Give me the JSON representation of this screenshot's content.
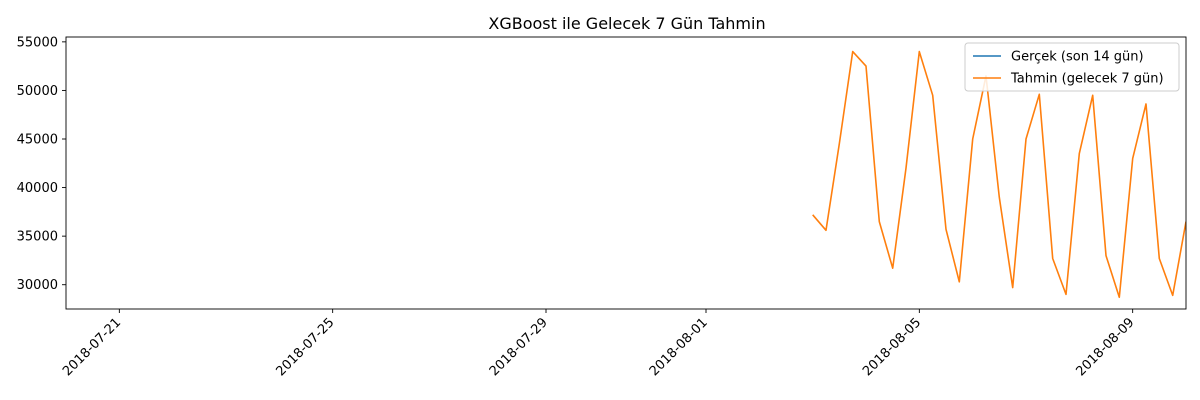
{
  "chart_data": {
    "type": "line",
    "title": "XGBoost ile Gelecek 7 Gün Tahmin",
    "xlabel": "",
    "ylabel": "",
    "xlim": [
      "2018-07-20",
      "2018-08-10"
    ],
    "ylim": [
      27500,
      55500
    ],
    "x_ticks": [
      "2018-07-21",
      "2018-07-25",
      "2018-07-29",
      "2018-08-01",
      "2018-08-05",
      "2018-08-09"
    ],
    "y_ticks": [
      30000,
      35000,
      40000,
      45000,
      50000,
      55000
    ],
    "y_tick_labels": [
      "30000",
      "35000",
      "40000",
      "45000",
      "50000",
      "55000"
    ],
    "grid": false,
    "legend": "top-right",
    "series": [
      {
        "name": "Gerçek (son 14 gün)",
        "color": "#1f77b4",
        "x": [],
        "values": []
      },
      {
        "name": "Tahmin (gelecek 7 gün)",
        "color": "#ff7f0e",
        "x": [
          "2018-08-03 00:00",
          "2018-08-03 06:00",
          "2018-08-03 12:00",
          "2018-08-03 18:00",
          "2018-08-04 00:00",
          "2018-08-04 06:00",
          "2018-08-04 12:00",
          "2018-08-04 18:00",
          "2018-08-05 00:00",
          "2018-08-05 06:00",
          "2018-08-05 12:00",
          "2018-08-05 18:00",
          "2018-08-06 00:00",
          "2018-08-06 06:00",
          "2018-08-06 12:00",
          "2018-08-06 18:00",
          "2018-08-07 00:00",
          "2018-08-07 06:00",
          "2018-08-07 12:00",
          "2018-08-07 18:00",
          "2018-08-08 00:00",
          "2018-08-08 06:00",
          "2018-08-08 12:00",
          "2018-08-08 18:00",
          "2018-08-09 00:00",
          "2018-08-09 06:00",
          "2018-08-09 12:00",
          "2018-08-09 18:00",
          "2018-08-10 00:00"
        ],
        "values": [
          37200,
          35600,
          44500,
          54000,
          52500,
          36500,
          31700,
          42000,
          54000,
          49500,
          35700,
          30300,
          45000,
          51500,
          39000,
          29700,
          45000,
          49600,
          32700,
          29000,
          43500,
          49500,
          33000,
          28700,
          43000,
          48600,
          32700,
          28900,
          36500
        ]
      }
    ]
  }
}
